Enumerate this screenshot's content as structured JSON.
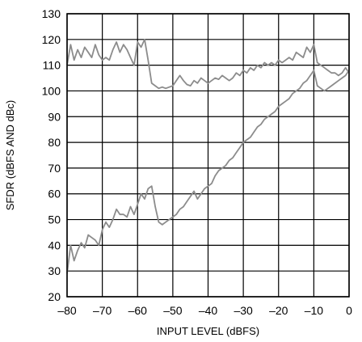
{
  "chart_data": {
    "type": "line",
    "title": "",
    "xlabel": "INPUT LEVEL (dBFS)",
    "ylabel": "SFDR (dBFS AND dBc)",
    "xlim": [
      -80,
      0
    ],
    "ylim": [
      20,
      130
    ],
    "xticks": [
      -80,
      -70,
      -60,
      -50,
      -40,
      -30,
      -20,
      -10,
      0
    ],
    "xtick_labels": [
      "–80",
      "–70",
      "–60",
      "–50",
      "–40",
      "–30",
      "–20",
      "–10",
      "0"
    ],
    "yticks": [
      20,
      30,
      40,
      50,
      60,
      70,
      80,
      90,
      100,
      110,
      120,
      130
    ],
    "ytick_labels": [
      "20",
      "30",
      "40",
      "50",
      "60",
      "70",
      "80",
      "90",
      "100",
      "110",
      "120",
      "130"
    ],
    "grid": true,
    "line_color": "#8c8c8c",
    "series": [
      {
        "x": [
          -80,
          -79,
          -78,
          -77,
          -76,
          -75,
          -74,
          -73,
          -72,
          -71,
          -70,
          -69,
          -68,
          -67,
          -66,
          -65,
          -64,
          -63,
          -62,
          -61,
          -60,
          -59,
          -58,
          -57,
          -56,
          -55,
          -54,
          -53,
          -52,
          -51,
          -50,
          -49,
          -48,
          -47,
          -46,
          -45,
          -44,
          -43,
          -42,
          -41,
          -40,
          -39,
          -38,
          -37,
          -36,
          -35,
          -34,
          -33,
          -32,
          -31,
          -30,
          -29,
          -28,
          -27,
          -26,
          -25,
          -24,
          -23,
          -22,
          -21,
          -20,
          -19,
          -18,
          -17,
          -16,
          -15,
          -14,
          -13,
          -12,
          -11,
          -10,
          -9,
          -8,
          -7,
          -6,
          -5,
          -4,
          -3,
          -2,
          -1,
          0
        ],
        "y": [
          110,
          118,
          112,
          116,
          113,
          117,
          115,
          113,
          118,
          114,
          112,
          113,
          112,
          116,
          119,
          115,
          118,
          116,
          113,
          110,
          119,
          117,
          120,
          112,
          103,
          102,
          101,
          101.5,
          101,
          101.5,
          102,
          104,
          106,
          104,
          102.5,
          102,
          104,
          103,
          105,
          104,
          103,
          104,
          105,
          104.5,
          106,
          105,
          104,
          105,
          107,
          106,
          108,
          107,
          109,
          108,
          110,
          109,
          111,
          110,
          111,
          110,
          112,
          111,
          112,
          113,
          112,
          115,
          114,
          113,
          117,
          115,
          118,
          111,
          110,
          109,
          108,
          107,
          107,
          106,
          107,
          109,
          107
        ]
      },
      {
        "x": [
          -80,
          -79,
          -78,
          -77,
          -76,
          -75,
          -74,
          -73,
          -72,
          -71,
          -70,
          -69,
          -68,
          -67,
          -66,
          -65,
          -64,
          -63,
          -62,
          -61,
          -60,
          -59,
          -58,
          -57,
          -56,
          -55,
          -54,
          -53,
          -52,
          -51,
          -50,
          -49,
          -48,
          -47,
          -46,
          -45,
          -44,
          -43,
          -42,
          -41,
          -40,
          -39,
          -38,
          -37,
          -36,
          -35,
          -34,
          -33,
          -32,
          -31,
          -30,
          -29,
          -28,
          -27,
          -26,
          -25,
          -24,
          -23,
          -22,
          -21,
          -20,
          -19,
          -18,
          -17,
          -16,
          -15,
          -14,
          -13,
          -12,
          -11,
          -10,
          -9,
          -8,
          -7,
          -6,
          -5,
          -4,
          -3,
          -2,
          -1,
          0
        ],
        "y": [
          29,
          40,
          34,
          38,
          41,
          39,
          44,
          43,
          42,
          40,
          46,
          49,
          47,
          50,
          54,
          52,
          52,
          51,
          55,
          52,
          56,
          60,
          58,
          62,
          63,
          55,
          49,
          48,
          49,
          50,
          51,
          52,
          54,
          55,
          57,
          59,
          61,
          58,
          60,
          62,
          63,
          64,
          67,
          69,
          70,
          71,
          73,
          74,
          76,
          78,
          80,
          81,
          82,
          84,
          86,
          87,
          89,
          90,
          91,
          92,
          94,
          95,
          96,
          97,
          99,
          100,
          101,
          103,
          104,
          106,
          108,
          102,
          101,
          100,
          101,
          102,
          103,
          104,
          105,
          106,
          108
        ]
      }
    ]
  }
}
